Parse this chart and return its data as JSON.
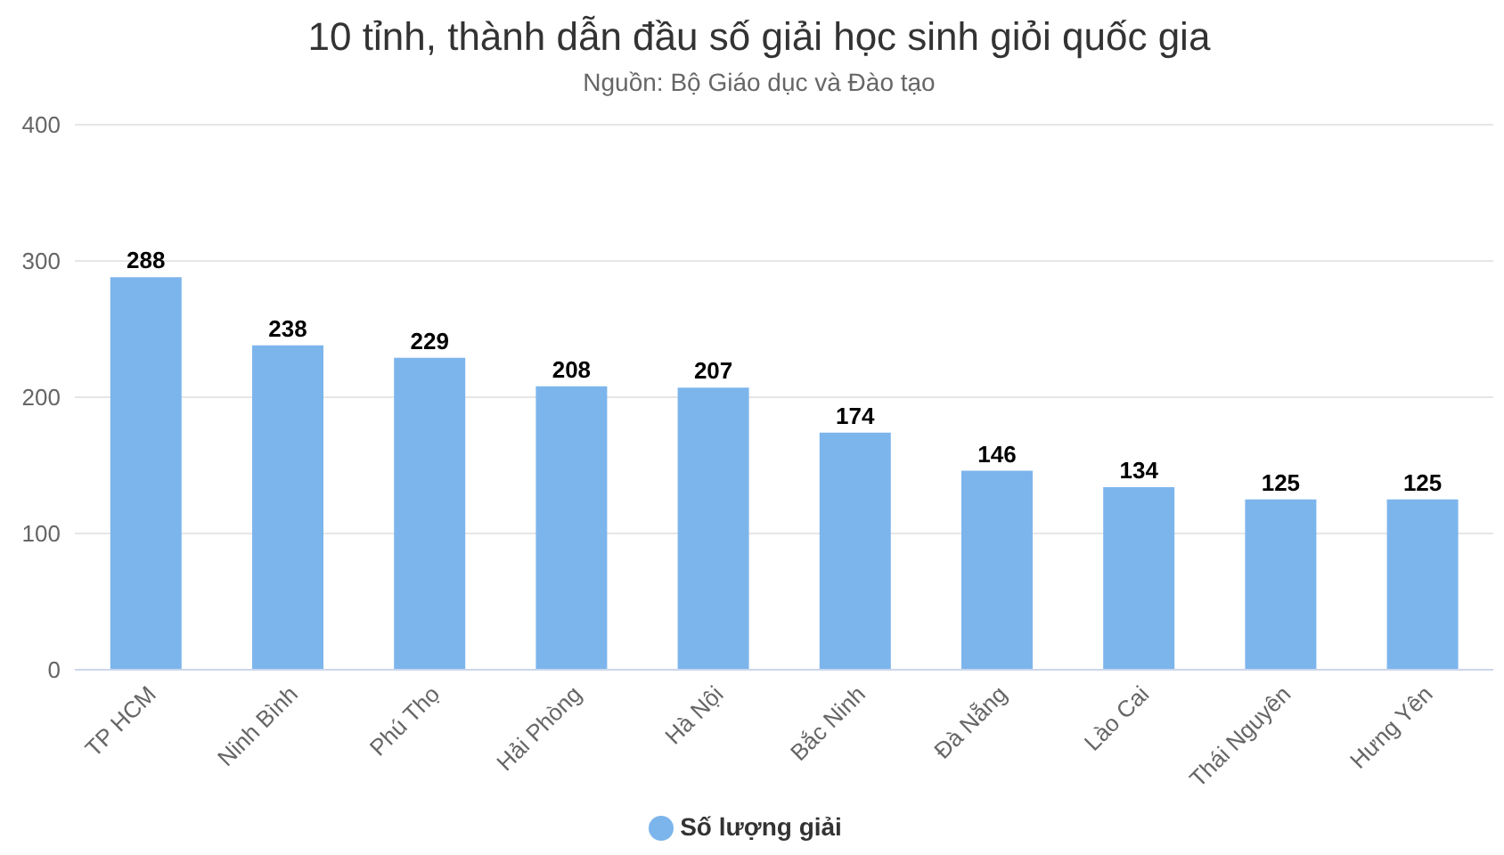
{
  "chart_data": {
    "type": "bar",
    "title": "10 tỉnh, thành dẫn đầu số giải học sinh giỏi quốc gia",
    "subtitle": "Nguồn: Bộ Giáo dục và Đào tạo",
    "categories": [
      "TP HCM",
      "Ninh Bình",
      "Phú Thọ",
      "Hải Phòng",
      "Hà Nội",
      "Bắc Ninh",
      "Đà Nẵng",
      "Lào Cai",
      "Thái Nguyên",
      "Hưng Yên"
    ],
    "series": [
      {
        "name": "Số lượng giải",
        "color": "#7cb5ec",
        "values": [
          288,
          238,
          229,
          208,
          207,
          174,
          146,
          134,
          125,
          125
        ]
      }
    ],
    "ylim": [
      0,
      400
    ],
    "yticks": [
      0,
      100,
      200,
      300,
      400
    ],
    "grid": "y",
    "legend": "bottom",
    "data_labels": true
  }
}
